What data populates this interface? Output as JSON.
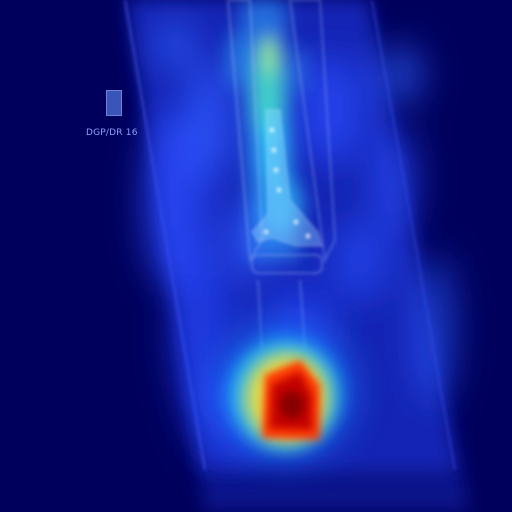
{
  "image": {
    "kind": "x-ray with heatmap overlay",
    "colormap": [
      "#00005a",
      "#1a2fff",
      "#20c8ff",
      "#ffe030",
      "#ff2a00",
      "#8a0000"
    ]
  },
  "marker": {
    "label": "DGP/DR 16"
  }
}
